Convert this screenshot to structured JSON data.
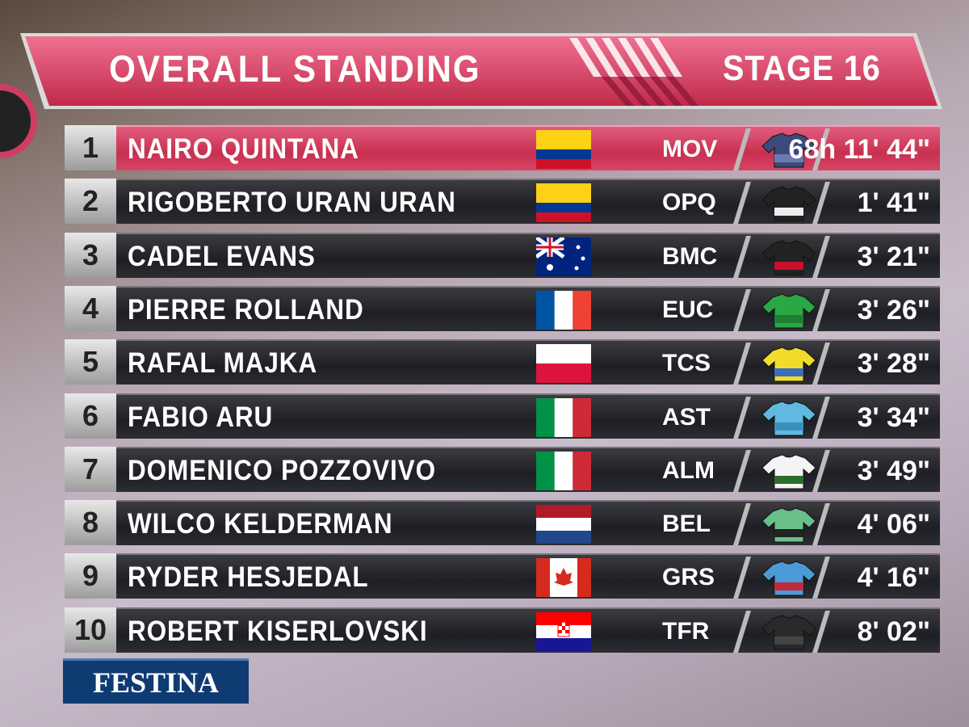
{
  "header": {
    "title": "OVERALL STANDING",
    "stage": "STAGE 16"
  },
  "table": {
    "rows": [
      {
        "rank": "1",
        "name": "NAIRO QUINTANA",
        "team": "MOV",
        "time": "68h 11' 44\""
      },
      {
        "rank": "2",
        "name": "RIGOBERTO URAN URAN",
        "team": "OPQ",
        "time": "1' 41\""
      },
      {
        "rank": "3",
        "name": "CADEL EVANS",
        "team": "BMC",
        "time": "3' 21\""
      },
      {
        "rank": "4",
        "name": "PIERRE ROLLAND",
        "team": "EUC",
        "time": "3' 26\""
      },
      {
        "rank": "5",
        "name": "RAFAL MAJKA",
        "team": "TCS",
        "time": "3' 28\""
      },
      {
        "rank": "6",
        "name": "FABIO ARU",
        "team": "AST",
        "time": "3' 34\""
      },
      {
        "rank": "7",
        "name": "DOMENICO POZZOVIVO",
        "team": "ALM",
        "time": "3' 49\""
      },
      {
        "rank": "8",
        "name": "WILCO KELDERMAN",
        "team": "BEL",
        "time": "4' 06\""
      },
      {
        "rank": "9",
        "name": "RYDER HESJEDAL",
        "team": "GRS",
        "time": "4' 16\""
      },
      {
        "rank": "10",
        "name": "ROBERT KISERLOVSKI",
        "team": "TFR",
        "time": "8' 02\""
      }
    ]
  },
  "sponsor": "FESTINA"
}
